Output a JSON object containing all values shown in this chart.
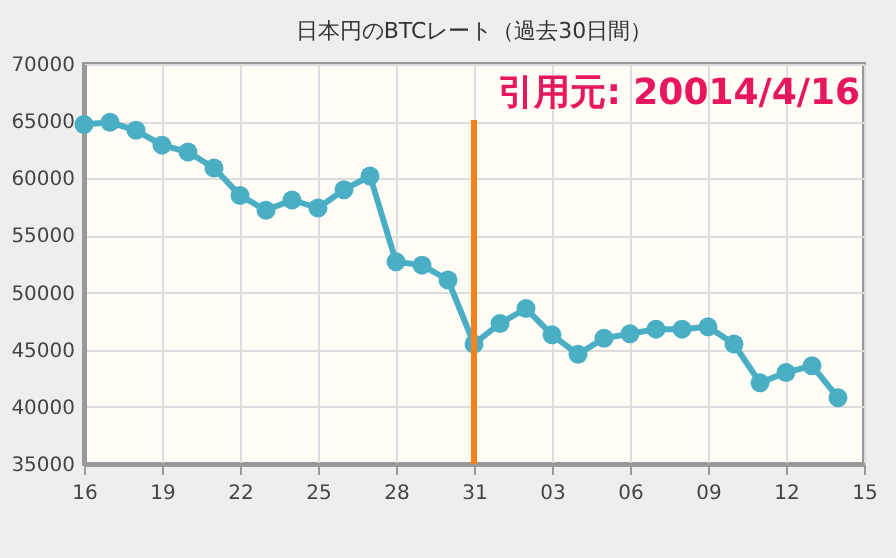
{
  "chart_data": {
    "type": "line",
    "title": "日本円のBTCレート（過去30日間）",
    "x": [
      "--03-16",
      "--03-17",
      "--03-18",
      "--03-19",
      "--03-20",
      "--03-21",
      "--03-22",
      "--03-23",
      "--03-24",
      "--03-25",
      "--03-26",
      "--03-27",
      "--03-28",
      "--03-29",
      "--03-30",
      "--03-31",
      "--04-01",
      "--04-02",
      "--04-03",
      "--04-04",
      "--04-05",
      "--04-06",
      "--04-07",
      "--04-08",
      "--04-09",
      "--04-10",
      "--04-11",
      "--04-12",
      "--04-13",
      "--04-14"
    ],
    "series": [
      {
        "color": "#4aafc4",
        "values": [
          64700,
          64900,
          64200,
          62900,
          62300,
          60900,
          58500,
          57200,
          58100,
          57400,
          59000,
          60200,
          52700,
          52400,
          51100,
          45500,
          47300,
          48600,
          46300,
          44600,
          46000,
          46400,
          46800,
          46800,
          47000,
          45500,
          42100,
          43000,
          43600,
          40800
        ]
      }
    ],
    "xlim": [
      "--03-16",
      "--04-15"
    ],
    "xticks": [
      {
        "value": "--03-16",
        "label": "16"
      },
      {
        "value": "--03-19",
        "label": "19"
      },
      {
        "value": "--03-22",
        "label": "22"
      },
      {
        "value": "--03-25",
        "label": "25"
      },
      {
        "value": "--03-28",
        "label": "28"
      },
      {
        "value": "--03-31",
        "label": "31"
      },
      {
        "value": "--04-03",
        "label": "03"
      },
      {
        "value": "--04-06",
        "label": "06"
      },
      {
        "value": "--04-09",
        "label": "09"
      },
      {
        "value": "--04-12",
        "label": "12"
      },
      {
        "value": "--04-15",
        "label": "15"
      }
    ],
    "ylim": [
      35000,
      70000
    ],
    "yticks": [
      35000,
      40000,
      45000,
      50000,
      55000,
      60000,
      65000,
      70000
    ],
    "ref_lines": [
      {
        "axis": "x",
        "value": "--03-31",
        "color": "#f7811f"
      }
    ],
    "annotations": [
      "引用元: 20014/4/16"
    ],
    "grid": true,
    "marker": "circle",
    "line_style": "solid"
  }
}
